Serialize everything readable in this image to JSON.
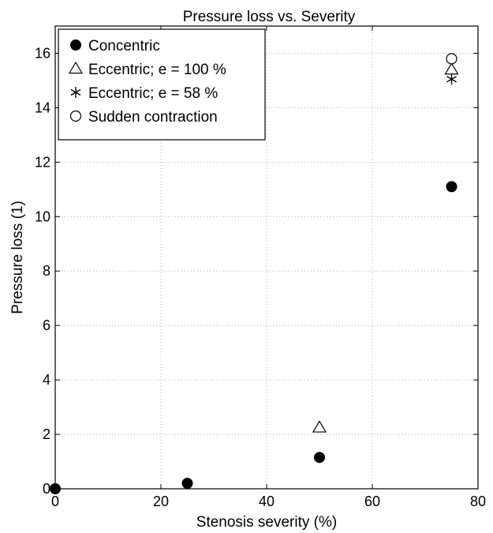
{
  "chart_data": {
    "type": "scatter",
    "title": "Pressure loss vs. Severity",
    "xlabel": "Stenosis severity (%)",
    "ylabel": "Pressure loss (1)",
    "xlim": [
      0,
      80
    ],
    "ylim": [
      0,
      17
    ],
    "xticks": [
      "0",
      "20",
      "40",
      "60",
      "80"
    ],
    "yticks": [
      "0",
      "2",
      "4",
      "6",
      "8",
      "10",
      "12",
      "14",
      "16"
    ],
    "grid": true,
    "legend_position": "top-left",
    "series": [
      {
        "name": "Concentric",
        "marker": "filled-circle",
        "points": [
          [
            0,
            0
          ],
          [
            25,
            0.2
          ],
          [
            50,
            1.15
          ],
          [
            75,
            11.1
          ]
        ]
      },
      {
        "name": "Eccentric; e = 100 %",
        "marker": "triangle",
        "points": [
          [
            50,
            2.25
          ],
          [
            75,
            15.4
          ]
        ]
      },
      {
        "name": "Eccentric; e = 58 %",
        "marker": "asterisk",
        "points": [
          [
            75,
            15.05
          ]
        ]
      },
      {
        "name": "Sudden contraction",
        "marker": "open-circle",
        "points": [
          [
            75,
            15.8
          ]
        ]
      }
    ]
  }
}
